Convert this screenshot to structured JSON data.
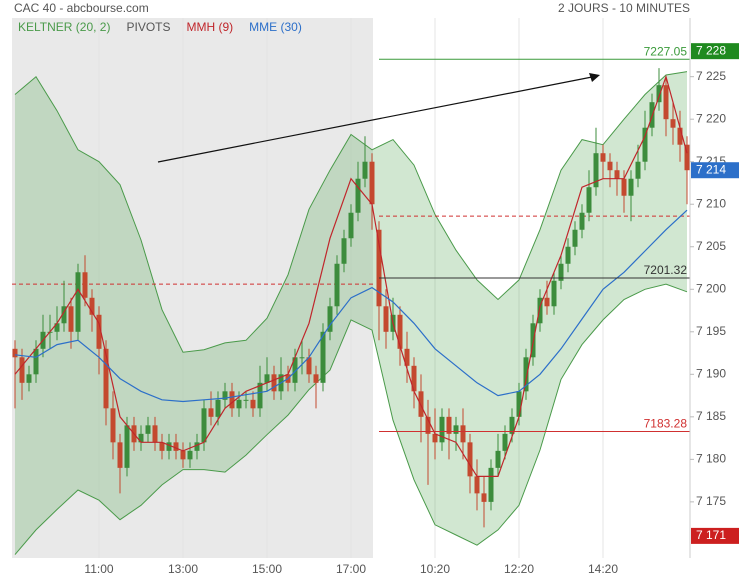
{
  "chart_data": {
    "type": "candlestick",
    "title": "CAC 40 - abcbourse.com",
    "subtitle": "2 JOURS - 10 MINUTES",
    "legend": [
      {
        "name": "KELTNER (20, 2)",
        "color": "#4a9a4a"
      },
      {
        "name": "PIVOTS",
        "color": "#555555"
      },
      {
        "name": "MMH (9)",
        "color": "#c0262b"
      },
      {
        "name": "MME (30)",
        "color": "#2c6fc9"
      }
    ],
    "categories": [
      null,
      null,
      null,
      null,
      null,
      null,
      null,
      null,
      null,
      null,
      null,
      null,
      "11:00",
      null,
      null,
      null,
      null,
      null,
      null,
      null,
      null,
      null,
      null,
      null,
      "13:00",
      null,
      null,
      null,
      null,
      null,
      null,
      null,
      null,
      null,
      null,
      null,
      "15:00",
      null,
      null,
      null,
      null,
      null,
      null,
      null,
      null,
      null,
      null,
      null,
      "17:00",
      null,
      null,
      null,
      null,
      null,
      null,
      null,
      null,
      null,
      null,
      null,
      "10:20",
      null,
      null,
      null,
      null,
      null,
      null,
      null,
      null,
      null,
      null,
      null,
      "12:20",
      null,
      null,
      null,
      null,
      null,
      null,
      null,
      null,
      null,
      null,
      null,
      "14:20",
      null,
      null,
      null,
      null,
      null,
      null,
      null,
      null,
      null,
      null,
      null,
      null
    ],
    "ohlc": [
      [
        7193,
        7194,
        7186,
        7192
      ],
      [
        7192,
        7193,
        7187,
        7189
      ],
      [
        7189,
        7191,
        7188,
        7190
      ],
      [
        7190,
        7194,
        7189,
        7193
      ],
      [
        7193,
        7197,
        7192,
        7195
      ],
      [
        7195,
        7197,
        7193,
        7195
      ],
      [
        7195,
        7198,
        7194,
        7196
      ],
      [
        7196,
        7201,
        7195,
        7198
      ],
      [
        7198,
        7199,
        7193,
        7195
      ],
      [
        7195,
        7203,
        7194,
        7202
      ],
      [
        7202,
        7204,
        7198,
        7199
      ],
      [
        7199,
        7200,
        7195,
        7197
      ],
      [
        7197,
        7198,
        7190,
        7193
      ],
      [
        7193,
        7194,
        7184,
        7186
      ],
      [
        7186,
        7188,
        7180,
        7182
      ],
      [
        7182,
        7183,
        7176,
        7179
      ],
      [
        7179,
        7185,
        7178,
        7184
      ],
      [
        7184,
        7185,
        7181,
        7182
      ],
      [
        7182,
        7184,
        7181,
        7183
      ],
      [
        7183,
        7185,
        7182,
        7184
      ],
      [
        7184,
        7185,
        7181,
        7182
      ],
      [
        7182,
        7183,
        7180,
        7181
      ],
      [
        7181,
        7183,
        7180,
        7182
      ],
      [
        7182,
        7183,
        7180,
        7181
      ],
      [
        7181,
        7182,
        7179,
        7180
      ],
      [
        7180,
        7182,
        7179,
        7181
      ],
      [
        7181,
        7183,
        7180,
        7182
      ],
      [
        7182,
        7187,
        7181,
        7186
      ],
      [
        7186,
        7188,
        7184,
        7185
      ],
      [
        7185,
        7188,
        7184,
        7187
      ],
      [
        7187,
        7189,
        7186,
        7188
      ],
      [
        7188,
        7189,
        7185,
        7186
      ],
      [
        7186,
        7188,
        7185,
        7187
      ],
      [
        7187,
        7188,
        7186,
        7187
      ],
      [
        7187,
        7188,
        7185,
        7186
      ],
      [
        7186,
        7191,
        7185,
        7189
      ],
      [
        7189,
        7192,
        7188,
        7190
      ],
      [
        7190,
        7191,
        7187,
        7188
      ],
      [
        7188,
        7192,
        7187,
        7190
      ],
      [
        7190,
        7191,
        7188,
        7189
      ],
      [
        7189,
        7193,
        7188,
        7192
      ],
      [
        7192,
        7194,
        7190,
        7192
      ],
      [
        7192,
        7193,
        7189,
        7190
      ],
      [
        7190,
        7191,
        7186,
        7189
      ],
      [
        7189,
        7196,
        7188,
        7195
      ],
      [
        7195,
        7199,
        7194,
        7198
      ],
      [
        7198,
        7204,
        7197,
        7203
      ],
      [
        7203,
        7207,
        7202,
        7206
      ],
      [
        7206,
        7210,
        7205,
        7209
      ],
      [
        7209,
        7215,
        7208,
        7213
      ],
      [
        7213,
        7218,
        7212,
        7215
      ],
      [
        7215,
        7216,
        7207,
        7210
      ],
      [
        7207,
        7208,
        7194,
        7198
      ],
      [
        7198,
        7200,
        7193,
        7195
      ],
      [
        7195,
        7199,
        7194,
        7197
      ],
      [
        7197,
        7198,
        7191,
        7193
      ],
      [
        7193,
        7195,
        7189,
        7191
      ],
      [
        7191,
        7192,
        7186,
        7188
      ],
      [
        7188,
        7190,
        7182,
        7185
      ],
      [
        7185,
        7187,
        7177,
        7183
      ],
      [
        7183,
        7186,
        7180,
        7182
      ],
      [
        7182,
        7186,
        7181,
        7185
      ],
      [
        7185,
        7186,
        7180,
        7183
      ],
      [
        7183,
        7185,
        7181,
        7184
      ],
      [
        7184,
        7186,
        7180,
        7182
      ],
      [
        7182,
        7183,
        7176,
        7178
      ],
      [
        7178,
        7180,
        7174,
        7176
      ],
      [
        7176,
        7178,
        7172,
        7175
      ],
      [
        7175,
        7180,
        7174,
        7179
      ],
      [
        7179,
        7183,
        7178,
        7181
      ],
      [
        7181,
        7184,
        7180,
        7183
      ],
      [
        7183,
        7186,
        7182,
        7185
      ],
      [
        7185,
        7189,
        7184,
        7188
      ],
      [
        7188,
        7193,
        7187,
        7192
      ],
      [
        7192,
        7197,
        7191,
        7196
      ],
      [
        7196,
        7200,
        7195,
        7199
      ],
      [
        7199,
        7201,
        7197,
        7198
      ],
      [
        7198,
        7202,
        7197,
        7201
      ],
      [
        7201,
        7204,
        7200,
        7203
      ],
      [
        7203,
        7206,
        7202,
        7205
      ],
      [
        7205,
        7208,
        7204,
        7207
      ],
      [
        7207,
        7210,
        7206,
        7209
      ],
      [
        7209,
        7214,
        7208,
        7212
      ],
      [
        7212,
        7219,
        7211,
        7216
      ],
      [
        7216,
        7217,
        7213,
        7215
      ],
      [
        7215,
        7216,
        7212,
        7214
      ],
      [
        7214,
        7215,
        7211,
        7213
      ],
      [
        7213,
        7214,
        7209,
        7211
      ],
      [
        7211,
        7214,
        7208,
        7213
      ],
      [
        7213,
        7217,
        7212,
        7215
      ],
      [
        7215,
        7221,
        7214,
        7219
      ],
      [
        7219,
        7223,
        7218,
        7222
      ],
      [
        7222,
        7226,
        7221,
        7224
      ],
      [
        7224,
        7225,
        7218,
        7220
      ],
      [
        7220,
        7222,
        7217,
        7219
      ],
      [
        7219,
        7221,
        7215,
        7217
      ],
      [
        7217,
        7218,
        7210,
        7214
      ]
    ],
    "up_color": "#3c8c3c",
    "down_color": "#c4492f",
    "overlay_x": [
      0,
      3,
      6,
      9,
      12,
      15,
      18,
      21,
      24,
      27,
      30,
      33,
      36,
      39,
      42,
      45,
      48,
      51,
      54,
      57,
      60,
      63,
      66,
      69,
      72,
      75,
      78,
      81,
      84,
      87,
      90,
      93,
      96
    ],
    "keltner_upper": [
      7222.9,
      7225,
      7221,
      7216.4,
      7215,
      7212.3,
      7205.8,
      7197.6,
      7192.6,
      7192.9,
      7193.7,
      7194,
      7196.6,
      7201.7,
      7209.4,
      7214,
      7218.2,
      7216.4,
      7217.6,
      7214.6,
      7208.8,
      7204.6,
      7201.1,
      7198.8,
      7201.1,
      7207,
      7214,
      7217.6,
      7217,
      7220,
      7222.9,
      7225.2,
      7225.6
    ],
    "keltner_lower": [
      7168.8,
      7171.7,
      7174.1,
      7176.4,
      7175.2,
      7172.9,
      7174.6,
      7177,
      7178.8,
      7178.8,
      7178.5,
      7180.5,
      7182.9,
      7185.2,
      7188.2,
      7190.5,
      7196.4,
      7195.2,
      7184.6,
      7177.6,
      7172.3,
      7171.1,
      7169.9,
      7171.7,
      7174.6,
      7181.1,
      7189.4,
      7193.5,
      7196.4,
      7198.8,
      7200,
      7200.6,
      7199.7
    ],
    "mmh": [
      7190,
      7193,
      7196,
      7200,
      7196,
      7185,
      7182,
      7182,
      7181,
      7182,
      7186,
      7188,
      7189,
      7190,
      7196,
      7206,
      7213,
      7210,
      7196,
      7188,
      7183,
      7182,
      7178,
      7178,
      7185,
      7198,
      7204,
      7212,
      7213,
      7213,
      7218,
      7225,
      7216
    ],
    "mme": [
      7192.3,
      7192,
      7193.5,
      7194,
      7192,
      7189.5,
      7188,
      7187,
      7186.8,
      7187,
      7187.2,
      7187.6,
      7188,
      7189.5,
      7192,
      7195.8,
      7199,
      7200.2,
      7198.5,
      7196,
      7193,
      7191,
      7189,
      7187.5,
      7188,
      7190,
      7193,
      7196.5,
      7200,
      7202,
      7204.5,
      7207,
      7209.3
    ],
    "levels": [
      {
        "value": 7227.05,
        "label": "7227.05",
        "color": "#3a9a3a"
      },
      {
        "value": 7201.32,
        "label": "7201.32",
        "color": "#333333"
      },
      {
        "value": 7183.28,
        "label": "7183.28",
        "color": "#d03030"
      }
    ],
    "pivots": [
      7200.6,
      7208.6
    ],
    "price_tags": [
      {
        "value": 7228,
        "label": "7 228",
        "color": "#1f8a1f"
      },
      {
        "value": 7214,
        "label": "7 214",
        "color": "#2c6fc9"
      },
      {
        "value": 7171,
        "label": "7 171",
        "color": "#cc1f1f"
      }
    ],
    "ylim": [
      7168.4,
      7231.9
    ],
    "yticks": [
      {
        "value": 7175,
        "label": "7 175"
      },
      {
        "value": 7180,
        "label": "7 180"
      },
      {
        "value": 7185,
        "label": "7 185"
      },
      {
        "value": 7190,
        "label": "7 190"
      },
      {
        "value": 7195,
        "label": "7 195"
      },
      {
        "value": 7200,
        "label": "7 200"
      },
      {
        "value": 7205,
        "label": "7 205"
      },
      {
        "value": 7210,
        "label": "7 210"
      },
      {
        "value": 7215,
        "label": "7 215"
      },
      {
        "value": 7220,
        "label": "7 220"
      },
      {
        "value": 7225,
        "label": "7 225"
      }
    ]
  }
}
